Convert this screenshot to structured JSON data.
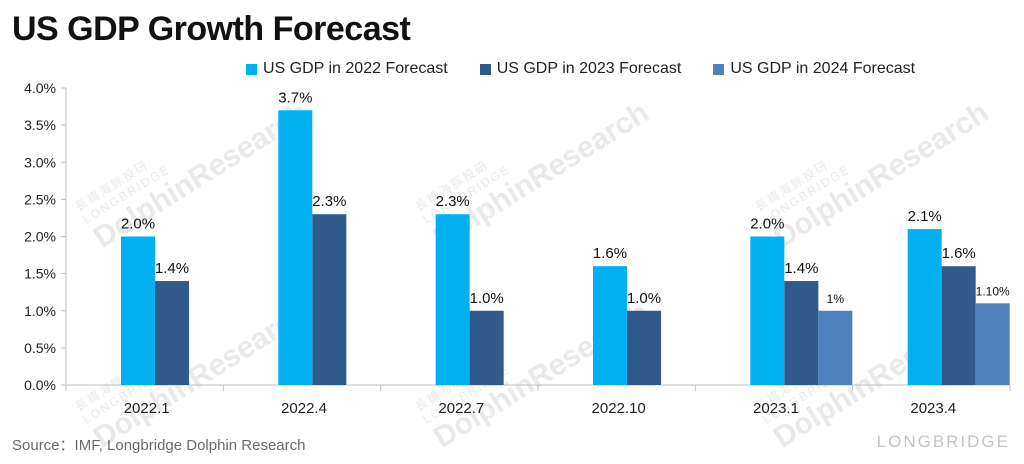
{
  "title": "US GDP Growth Forecast",
  "source": "Source：IMF, Longbridge Dolphin Research",
  "watermark": {
    "name": "DolphinResearch",
    "sub": "LONGBRIDGE",
    "cn": "長橋海豚投研"
  },
  "brand": "LONGBRIDGE",
  "colors": {
    "s2022": "#00b0f0",
    "s2023": "#2f5a8b",
    "s2024": "#4f81bd"
  },
  "chart_data": {
    "type": "bar",
    "title": "US GDP Growth Forecast",
    "categories": [
      "2022.1",
      "2022.4",
      "2022.7",
      "2022.10",
      "2023.1",
      "2023.4"
    ],
    "series": [
      {
        "name": "US GDP in 2022 Forecast",
        "color": "#00b0f0",
        "values": [
          2.0,
          3.7,
          2.3,
          1.6,
          2.0,
          2.1
        ],
        "labels": [
          "2.0%",
          "3.7%",
          "2.3%",
          "1.6%",
          "2.0%",
          "2.1%"
        ]
      },
      {
        "name": "US GDP in 2023 Forecast",
        "color": "#2f5a8b",
        "values": [
          1.4,
          2.3,
          1.0,
          1.0,
          1.4,
          1.6
        ],
        "labels": [
          "1.4%",
          "2.3%",
          "1.0%",
          "1.0%",
          "1.4%",
          "1.6%"
        ]
      },
      {
        "name": "US GDP in 2024 Forecast",
        "color": "#4f81bd",
        "values": [
          null,
          null,
          null,
          null,
          1.0,
          1.1
        ],
        "labels": [
          "",
          "",
          "",
          "",
          "1%",
          "1.10%"
        ]
      }
    ],
    "ylim": [
      0,
      4.0
    ],
    "yticks": [
      "0.0%",
      "0.5%",
      "1.0%",
      "1.5%",
      "2.0%",
      "2.5%",
      "3.0%",
      "3.5%",
      "4.0%"
    ],
    "xlabel": "",
    "ylabel": "",
    "grid": false,
    "legend": "top"
  }
}
